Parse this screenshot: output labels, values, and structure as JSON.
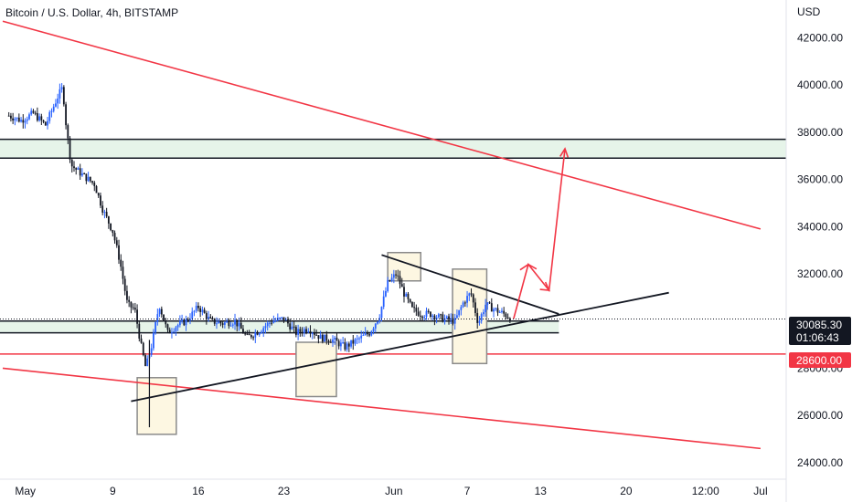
{
  "header": {
    "title": "Bitcoin / U.S. Dollar, 4h, BITSTAMP"
  },
  "colors": {
    "up_candle": "#2962ff",
    "down_candle": "#131722",
    "resistance_line": "#f23645",
    "support_line": "#f23645",
    "trend_line": "#131722",
    "zone_fill": "#e6f4e9",
    "box_fill": "#fdf7e2",
    "box_stroke": "#8a8a8a",
    "projection_arrow": "#f23645"
  },
  "chart_data": {
    "type": "candlestick",
    "title": "Bitcoin / U.S. Dollar, 4h, BITSTAMP",
    "symbol": "BTCUSD",
    "timeframe": "4h",
    "exchange": "BITSTAMP",
    "currency_label": "USD",
    "ylim": [
      23300,
      43600
    ],
    "y_ticks": [
      24000,
      26000,
      28000,
      30000,
      32000,
      34000,
      36000,
      38000,
      40000,
      42000
    ],
    "x_ticks": [
      "May",
      "9",
      "16",
      "23",
      "Jun",
      "7",
      "13",
      "20",
      "12:00",
      "Jul"
    ],
    "x_tick_day": [
      1,
      9,
      16,
      23,
      32,
      38,
      44,
      51,
      57.5,
      62
    ],
    "last_price": "30085.30",
    "countdown": "01:06:43",
    "level_tag": "28600.00",
    "series_points": [
      [
        0.5,
        38700
      ],
      [
        1.5,
        38500
      ],
      [
        2.5,
        38800
      ],
      [
        3.5,
        38300
      ],
      [
        4.5,
        39500
      ],
      [
        4.9,
        39900
      ],
      [
        5.2,
        38200
      ],
      [
        5.6,
        36600
      ],
      [
        6.5,
        36200
      ],
      [
        7.5,
        35800
      ],
      [
        8.2,
        34700
      ],
      [
        9.0,
        33800
      ],
      [
        9.6,
        32500
      ],
      [
        10.2,
        30700
      ],
      [
        10.8,
        30500
      ],
      [
        11.3,
        29000
      ],
      [
        11.7,
        28000
      ],
      [
        12.2,
        29000
      ],
      [
        12.8,
        30700
      ],
      [
        13.5,
        29500
      ],
      [
        14.2,
        29800
      ],
      [
        15.0,
        30000
      ],
      [
        16.0,
        30600
      ],
      [
        17.0,
        30000
      ],
      [
        18.0,
        29900
      ],
      [
        19.0,
        30000
      ],
      [
        20.0,
        29300
      ],
      [
        21.0,
        29600
      ],
      [
        22.0,
        30000
      ],
      [
        23.0,
        30100
      ],
      [
        24.0,
        29500
      ],
      [
        25.0,
        29700
      ],
      [
        26.0,
        29300
      ],
      [
        27.0,
        29200
      ],
      [
        28.0,
        28900
      ],
      [
        29.0,
        29200
      ],
      [
        30.0,
        29500
      ],
      [
        30.8,
        30200
      ],
      [
        31.5,
        31600
      ],
      [
        32.2,
        32000
      ],
      [
        32.8,
        31200
      ],
      [
        33.5,
        30500
      ],
      [
        34.2,
        30300
      ],
      [
        35.0,
        30300
      ],
      [
        36.0,
        30100
      ],
      [
        37.0,
        30000
      ],
      [
        37.7,
        30800
      ],
      [
        38.3,
        31200
      ],
      [
        38.9,
        29900
      ],
      [
        39.5,
        30700
      ],
      [
        40.2,
        30500
      ],
      [
        41.0,
        30300
      ],
      [
        41.6,
        30100
      ]
    ],
    "horizontal_zones": [
      {
        "from": 36900,
        "to": 37700
      },
      {
        "from": 29500,
        "to": 30000
      }
    ],
    "horizontal_lines": [
      {
        "y": 28600,
        "label": "28600.00"
      }
    ],
    "lines": [
      {
        "kind": "descending-channel-upper",
        "from": [
          0,
          42700
        ],
        "to": [
          62,
          33900
        ]
      },
      {
        "kind": "descending-channel-lower",
        "from": [
          0,
          28000
        ],
        "to": [
          62,
          24600
        ]
      },
      {
        "kind": "ascending-trendline",
        "from": [
          10.5,
          26600
        ],
        "to": [
          54.5,
          31200
        ]
      },
      {
        "kind": "triangle-upper",
        "from": [
          31,
          32800
        ],
        "to": [
          45.5,
          30300
        ]
      }
    ],
    "boxes": [
      {
        "from_day": 11,
        "to_day": 14.2,
        "from": 25200,
        "to": 27600
      },
      {
        "from_day": 24,
        "to_day": 27.3,
        "from": 26800,
        "to": 29100
      },
      {
        "from_day": 31.5,
        "to_day": 34.2,
        "from": 31700,
        "to": 32900
      },
      {
        "from_day": 36.8,
        "to_day": 39.6,
        "from": 28200,
        "to": 32200
      }
    ],
    "projection": [
      [
        41.8,
        30100
      ],
      [
        43,
        32400
      ],
      [
        44.7,
        31300
      ],
      [
        46,
        37300
      ]
    ]
  }
}
